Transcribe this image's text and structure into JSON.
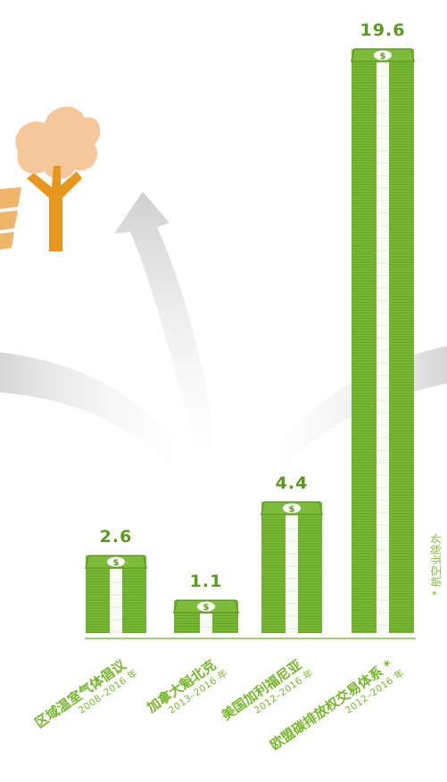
{
  "colors": {
    "bill_dark": "#5f9c1e",
    "bill_light": "#7dbb3a",
    "bill_band": "#ffffff",
    "value_text": "#5a9a1c",
    "category_text": "#76b72a",
    "footnote_text": "#7fb93a",
    "axis": "#8cbf4a",
    "tree_canopy": "#f6c79a",
    "tree_trunk": "#e8961e",
    "panel": "#efb56a",
    "arrow_gray": "#d9d9d9"
  },
  "icons": {
    "bill": "dollar-bill-icon",
    "tree": "tree-icon",
    "solar": "solar-panel-icon"
  },
  "footnote": "* 航空业除外",
  "chart_data": {
    "type": "bar",
    "categories": [
      "区域温室气体倡议",
      "加拿大魁北克",
      "美国加利福尼亚",
      "欧盟碳排放权交易体系 *"
    ],
    "periods": [
      "2008–2016 年",
      "2013–2016 年",
      "2012–2016 年",
      "2012–2016 年"
    ],
    "values": [
      2.6,
      1.1,
      4.4,
      19.6
    ],
    "value_labels": [
      "2.6",
      "1.1",
      "4.4",
      "19.6"
    ],
    "ylim": [
      0,
      19.6
    ],
    "title": "",
    "xlabel": "",
    "ylabel": ""
  }
}
